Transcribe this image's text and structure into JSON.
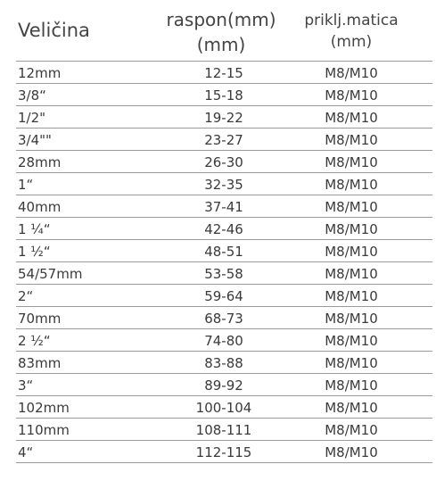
{
  "table": {
    "headers": {
      "size": "Veličina",
      "range_line1": "raspon(mm)",
      "range_line2": "(mm)",
      "nut_line1": "priklj.matica",
      "nut_line2": "(mm)"
    },
    "rows": [
      {
        "size": "12mm",
        "range": "12-15",
        "nut": "M8/M10"
      },
      {
        "size": "3/8“",
        "range": "15-18",
        "nut": "M8/M10"
      },
      {
        "size": "1/2\"",
        "range": "19-22",
        "nut": "M8/M10"
      },
      {
        "size": "3/4\"\"",
        "range": "23-27",
        "nut": "M8/M10"
      },
      {
        "size": "28mm",
        "range": "26-30",
        "nut": "M8/M10"
      },
      {
        "size": "1“",
        "range": "32-35",
        "nut": "M8/M10"
      },
      {
        "size": "40mm",
        "range": "37-41",
        "nut": "M8/M10"
      },
      {
        "size": "1 ¼“",
        "range": "42-46",
        "nut": "M8/M10"
      },
      {
        "size": "1 ½“",
        "range": "48-51",
        "nut": "M8/M10"
      },
      {
        "size": "54/57mm",
        "range": "53-58",
        "nut": "M8/M10"
      },
      {
        "size": "2“",
        "range": "59-64",
        "nut": "M8/M10"
      },
      {
        "size": "70mm",
        "range": "68-73",
        "nut": "M8/M10"
      },
      {
        "size": "2 ½“",
        "range": "74-80",
        "nut": "M8/M10"
      },
      {
        "size": "83mm",
        "range": "83-88",
        "nut": "M8/M10"
      },
      {
        "size": "3“",
        "range": "89-92",
        "nut": "M8/M10"
      },
      {
        "size": "102mm",
        "range": "100-104",
        "nut": "M8/M10"
      },
      {
        "size": "110mm",
        "range": "108-111",
        "nut": "M8/M10"
      },
      {
        "size": "4“",
        "range": "112-115",
        "nut": "M8/M10"
      }
    ]
  }
}
